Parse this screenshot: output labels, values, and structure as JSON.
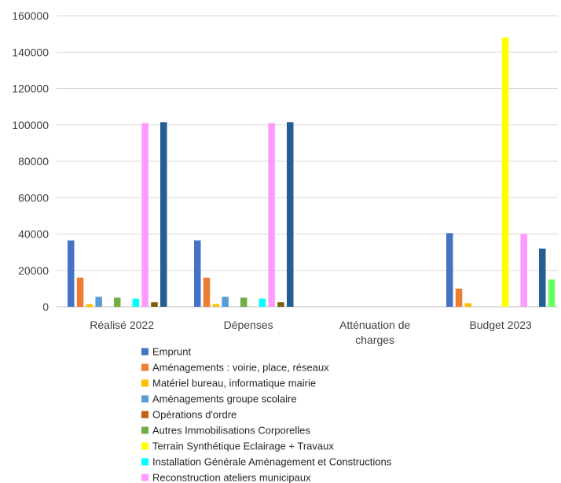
{
  "chart_data": {
    "type": "bar",
    "title": "",
    "xlabel": "",
    "ylabel": "",
    "ylim": [
      0,
      160000
    ],
    "yticks": [
      0,
      20000,
      40000,
      60000,
      80000,
      100000,
      120000,
      140000,
      160000
    ],
    "y_tick_labels": [
      "0",
      "20000",
      "40000",
      "60000",
      "80000",
      "100000",
      "120000",
      "140000",
      "160000"
    ],
    "grid": "horizontal",
    "legend_position": "bottom",
    "categories": [
      [
        "Réalisé 2022"
      ],
      [
        "Dépenses"
      ],
      [
        "Atténuation de",
        "charges"
      ],
      [
        "Budget 2023"
      ]
    ],
    "series": [
      {
        "name": "Emprunt",
        "color": "#4472C4",
        "values": [
          36500,
          36500,
          0,
          40500
        ]
      },
      {
        "name": "Aménagements : voirie, place, réseaux",
        "color": "#ED7D31",
        "values": [
          16000,
          16000,
          0,
          10000
        ]
      },
      {
        "name": "Matériel bureau, informatique mairie",
        "color": "#FFC000",
        "values": [
          1500,
          1500,
          0,
          2000
        ]
      },
      {
        "name": "Aménagements groupe scolaire",
        "color": "#5B9BD5",
        "values": [
          5500,
          5500,
          0,
          0
        ]
      },
      {
        "name": "Opérations d'ordre",
        "color": "#C55A11",
        "values": [
          0,
          0,
          0,
          0
        ]
      },
      {
        "name": "Autres Immobilisations Corporelles",
        "color": "#70AD47",
        "values": [
          5000,
          5000,
          0,
          0
        ]
      },
      {
        "name": "Terrain Synthétique Eclairage + Travaux",
        "color": "#FFFF00",
        "values": [
          0,
          0,
          0,
          148000
        ]
      },
      {
        "name": "Installation Générale Aménagement et Constructions",
        "color": "#00FFFF",
        "values": [
          4500,
          4500,
          0,
          0
        ]
      },
      {
        "name": "Reconstruction ateliers municipaux",
        "color": "#FF99FF",
        "values": [
          101000,
          101000,
          0,
          40000
        ]
      },
      {
        "name": "",
        "color": "#7F6000",
        "values": [
          2500,
          2500,
          0,
          0
        ]
      },
      {
        "name": "",
        "color": "#255E91",
        "values": [
          101500,
          101500,
          0,
          32000
        ]
      },
      {
        "name": "",
        "color": "#66FF66",
        "values": [
          0,
          0,
          0,
          15000
        ]
      }
    ]
  }
}
